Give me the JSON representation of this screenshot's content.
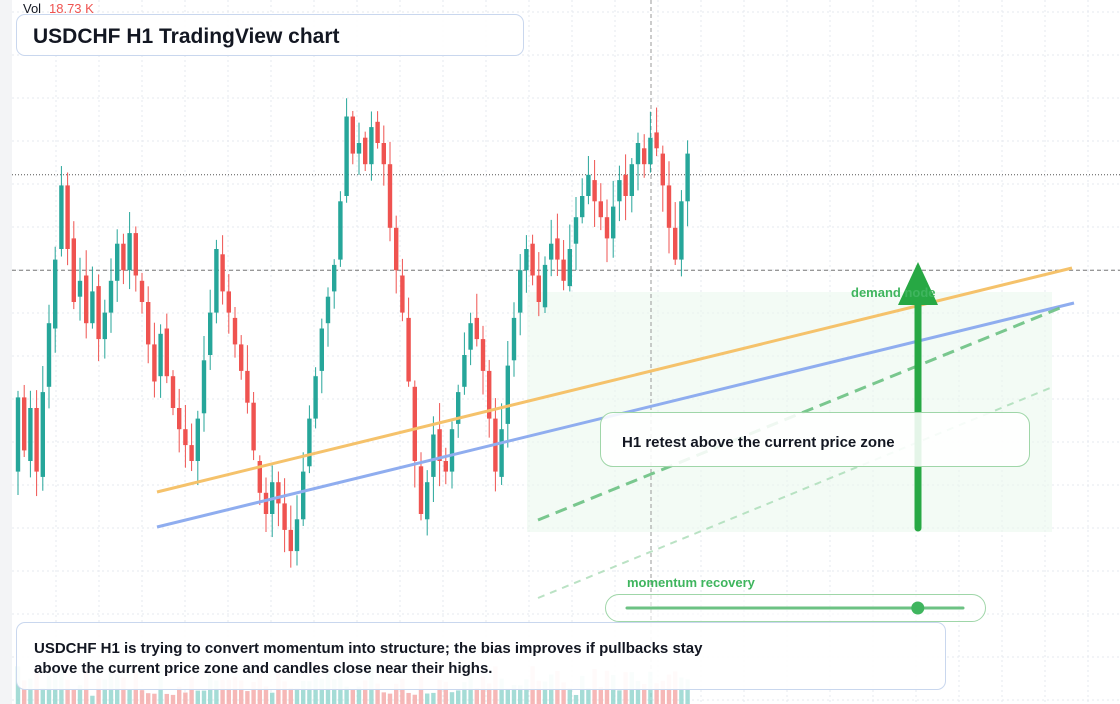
{
  "header": {
    "vol_label": "Vol",
    "vol_value": "18.73 K"
  },
  "title": "USDCHF H1 TradingView chart",
  "annotations": {
    "retest_label": "H1 retest above the current price zone",
    "demand_label": "demand node",
    "momentum_label": "momentum recovery",
    "momentum_level": 0.8,
    "note_line_1": "USDCHF H1 is trying to convert momentum into structure; the bias improves if pullbacks stay",
    "note_line_2": "above the current price zone and candles close near their highs."
  },
  "colors": {
    "up": "#26a69a",
    "down": "#ef5350",
    "up_volume": "#8fd3cc",
    "down_volume": "#f4a6a5",
    "grid": "#e6e9ef",
    "orange_trend": "#f5c26b",
    "blue_trend": "#8fadef",
    "green_annotation": "#27a844",
    "zone_fill": "#e9f7ec"
  },
  "chart_data": {
    "type": "candlestick",
    "symbol": "USDCHF",
    "timeframe": "H1",
    "price_range": [
      0,
      100
    ],
    "current_price": 66,
    "reference_high": 84,
    "seed": 20240615,
    "candles": [
      [
        28,
        42
      ],
      [
        42,
        32
      ],
      [
        30,
        40
      ],
      [
        40,
        28
      ],
      [
        27,
        43
      ],
      [
        44,
        56
      ],
      [
        55,
        68
      ],
      [
        70,
        82
      ],
      [
        82,
        70
      ],
      [
        72,
        60
      ],
      [
        61,
        64
      ],
      [
        65,
        56
      ],
      [
        56,
        62
      ],
      [
        63,
        53
      ],
      [
        53,
        58
      ],
      [
        58,
        64
      ],
      [
        64,
        71
      ],
      [
        71,
        66
      ],
      [
        66,
        73
      ],
      [
        73,
        65
      ],
      [
        64,
        60
      ],
      [
        60,
        52
      ],
      [
        52,
        45
      ],
      [
        46,
        54
      ],
      [
        55,
        46
      ],
      [
        46,
        40
      ],
      [
        40,
        36
      ],
      [
        36,
        33
      ],
      [
        33,
        30
      ],
      [
        30,
        38
      ],
      [
        39,
        49
      ],
      [
        50,
        58
      ],
      [
        58,
        70
      ],
      [
        69,
        62
      ],
      [
        62,
        58
      ],
      [
        57,
        52
      ],
      [
        52,
        47
      ],
      [
        47,
        41
      ],
      [
        41,
        32
      ],
      [
        30,
        24
      ],
      [
        24,
        20
      ],
      [
        20,
        26
      ],
      [
        26,
        22
      ],
      [
        22,
        17
      ],
      [
        17,
        13
      ],
      [
        13,
        19
      ],
      [
        19,
        28
      ],
      [
        29,
        38
      ],
      [
        38,
        46
      ],
      [
        47,
        55
      ],
      [
        56,
        61
      ],
      [
        62,
        67
      ],
      [
        68,
        79
      ],
      [
        80,
        95
      ],
      [
        95,
        88
      ],
      [
        88,
        90
      ],
      [
        91,
        86
      ],
      [
        86,
        93
      ],
      [
        94,
        90
      ],
      [
        90,
        86
      ],
      [
        86,
        74
      ],
      [
        74,
        66
      ],
      [
        65,
        58
      ],
      [
        57,
        45
      ],
      [
        44,
        30
      ],
      [
        29,
        20
      ],
      [
        19,
        26
      ],
      [
        27,
        35
      ],
      [
        36,
        30
      ],
      [
        30,
        28
      ],
      [
        28,
        36
      ],
      [
        37,
        43
      ],
      [
        44,
        50
      ],
      [
        51,
        56
      ],
      [
        57,
        53
      ],
      [
        53,
        47
      ],
      [
        47,
        38
      ],
      [
        38,
        28
      ],
      [
        27,
        36
      ],
      [
        37,
        48
      ],
      [
        49,
        57
      ],
      [
        58,
        66
      ],
      [
        66,
        70
      ],
      [
        71,
        65
      ],
      [
        65,
        60
      ],
      [
        59,
        67
      ],
      [
        68,
        71
      ],
      [
        72,
        68
      ],
      [
        68,
        64
      ],
      [
        63,
        70
      ],
      [
        71,
        76
      ],
      [
        76,
        80
      ],
      [
        80,
        84
      ],
      [
        83,
        79
      ],
      [
        79,
        76
      ],
      [
        76,
        72
      ],
      [
        72,
        78
      ],
      [
        79,
        83
      ],
      [
        84,
        80
      ],
      [
        80,
        86
      ],
      [
        86,
        90
      ],
      [
        89,
        86
      ],
      [
        86,
        91
      ],
      [
        92,
        89
      ],
      [
        88,
        82
      ],
      [
        82,
        74
      ],
      [
        74,
        68
      ],
      [
        68,
        79
      ],
      [
        79,
        88
      ]
    ]
  }
}
